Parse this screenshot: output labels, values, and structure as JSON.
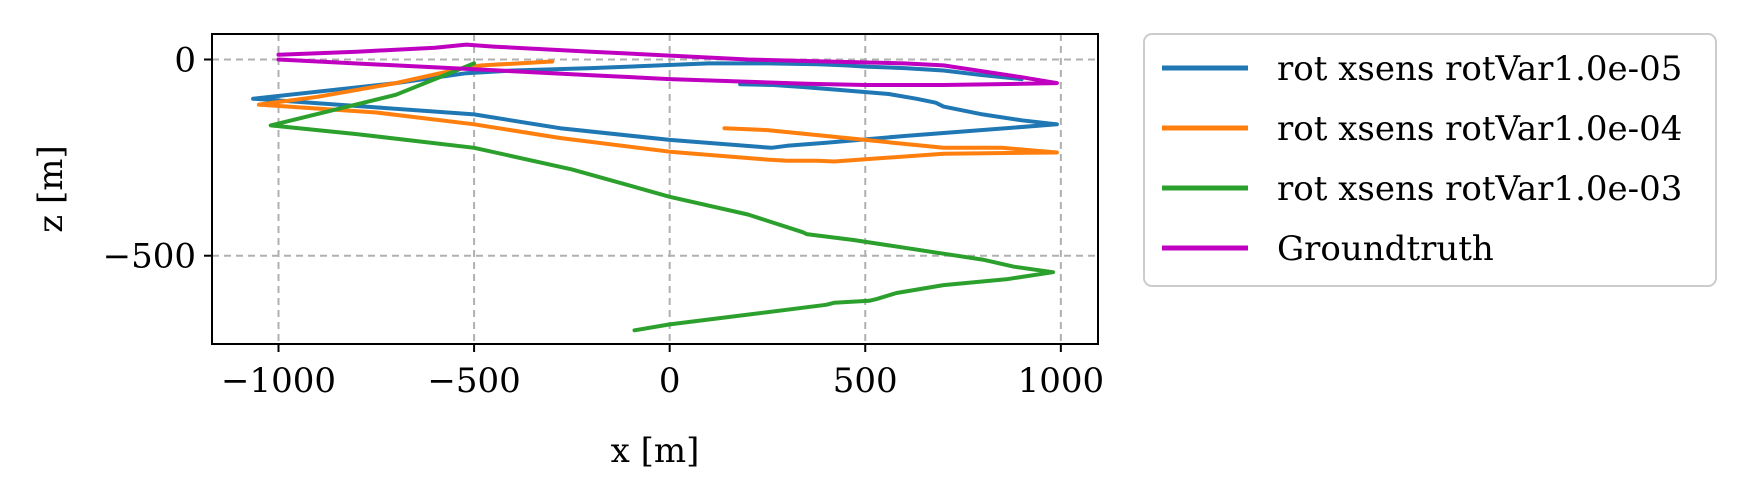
{
  "chart_data": {
    "type": "line",
    "title": "",
    "xlabel": "x [m]",
    "ylabel": "z [m]",
    "xlim": [
      -1170,
      1095
    ],
    "ylim": [
      -725,
      65
    ],
    "xticks": [
      -1000,
      -500,
      0,
      500,
      1000
    ],
    "xtick_labels": [
      "−1000",
      "−500",
      "0",
      "500",
      "1000"
    ],
    "yticks": [
      0,
      -500
    ],
    "ytick_labels": [
      "0",
      "−500"
    ],
    "grid": true,
    "legend_position": "outside-right",
    "series": [
      {
        "name": "rot xsens rotVar1.0e-05",
        "color": "#1f77b4",
        "x": [
          180,
          265,
          340,
          440,
          560,
          630,
          680,
          700,
          740,
          800,
          900,
          990,
          600,
          400,
          300,
          260,
          0,
          -280,
          -500,
          -750,
          -1065,
          -700,
          -520,
          -400,
          -200,
          100,
          250,
          380,
          450,
          500,
          600,
          700,
          800,
          900
        ],
        "z": [
          -63,
          -65,
          -70,
          -78,
          -88,
          -100,
          -110,
          -120,
          -128,
          -140,
          -155,
          -165,
          -195,
          -212,
          -220,
          -225,
          -205,
          -175,
          -140,
          -122,
          -100,
          -60,
          -35,
          -28,
          -22,
          -10,
          -10,
          -12,
          -15,
          -18,
          -22,
          -28,
          -40,
          -50
        ]
      },
      {
        "name": "rot xsens rotVar1.0e-04",
        "color": "#ff7f0e",
        "x": [
          140,
          250,
          400,
          500,
          600,
          700,
          780,
          850,
          990,
          700,
          420,
          380,
          300,
          250,
          0,
          -280,
          -500,
          -750,
          -1050,
          -900,
          -700,
          -520,
          -480,
          -300
        ],
        "z": [
          -175,
          -180,
          -195,
          -205,
          -215,
          -225,
          -225,
          -225,
          -237,
          -240,
          -260,
          -258,
          -258,
          -255,
          -235,
          -200,
          -165,
          -135,
          -115,
          -95,
          -60,
          -20,
          -15,
          -5
        ]
      },
      {
        "name": "rot xsens rotVar1.0e-03",
        "color": "#2ca02c",
        "x": [
          -500,
          -700,
          -1020,
          -800,
          -500,
          -250,
          0,
          200,
          340,
          350,
          470,
          700,
          800,
          880,
          980,
          860,
          700,
          580,
          530,
          510,
          420,
          400,
          200,
          0,
          -90
        ],
        "z": [
          -10,
          -90,
          -168,
          -190,
          -225,
          -280,
          -350,
          -395,
          -440,
          -445,
          -460,
          -495,
          -510,
          -528,
          -542,
          -560,
          -575,
          -595,
          -610,
          -615,
          -620,
          -625,
          -650,
          -675,
          -690
        ]
      },
      {
        "name": "Groundtruth",
        "color": "#c000c0",
        "x": [
          -1000,
          -800,
          -600,
          -520,
          -450,
          -200,
          200,
          400,
          600,
          700,
          900,
          990,
          900,
          700,
          500,
          350,
          0,
          -200,
          -500,
          -700,
          -1000
        ],
        "z": [
          12,
          20,
          30,
          38,
          33,
          20,
          0,
          -5,
          -10,
          -15,
          -45,
          -60,
          -62,
          -65,
          -65,
          -62,
          -50,
          -40,
          -25,
          -15,
          0
        ]
      }
    ]
  }
}
